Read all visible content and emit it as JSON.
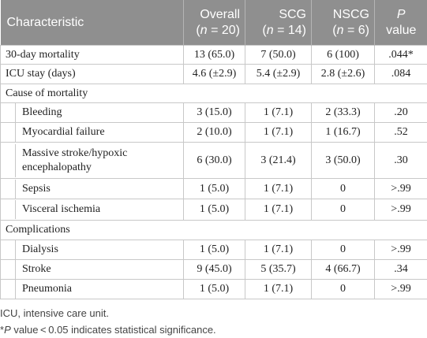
{
  "table": {
    "header": [
      [
        [
          "Characteristic"
        ]
      ],
      [
        [
          "Overall"
        ],
        [
          "(",
          {
            "text": "n",
            "italic": true
          },
          " = 20)"
        ]
      ],
      [
        [
          "SCG"
        ],
        [
          "(",
          {
            "text": "n",
            "italic": true
          },
          " = 14)"
        ]
      ],
      [
        [
          "NSCG"
        ],
        [
          "(",
          {
            "text": "n",
            "italic": true
          },
          " = 6)"
        ]
      ],
      [
        [
          {
            "text": "P",
            "italic": true
          }
        ],
        [
          "value"
        ]
      ]
    ],
    "rows": [
      {
        "indent": false,
        "cells": [
          "30-day mortality",
          "13 (65.0)",
          "7 (50.0)",
          "6 (100)",
          ".044*"
        ]
      },
      {
        "indent": false,
        "cells": [
          "ICU stay (days)",
          "4.6 (±2.9)",
          "5.4 (±2.9)",
          "2.8 (±2.6)",
          ".084"
        ]
      },
      {
        "section": true,
        "cells": [
          "Cause of mortality"
        ]
      },
      {
        "indent": true,
        "cells": [
          "Bleeding",
          "3 (15.0)",
          "1 (7.1)",
          "2 (33.3)",
          ".20"
        ]
      },
      {
        "indent": true,
        "cells": [
          "Myocardial failure",
          "2 (10.0)",
          "1 (7.1)",
          "1 (16.7)",
          ".52"
        ]
      },
      {
        "indent": true,
        "cells": [
          "Massive stroke/hypoxic encephalopathy",
          "6 (30.0)",
          "3 (21.4)",
          "3 (50.0)",
          ".30"
        ]
      },
      {
        "indent": true,
        "cells": [
          "Sepsis",
          "1 (5.0)",
          "1 (7.1)",
          "0",
          ">.99"
        ]
      },
      {
        "indent": true,
        "cells": [
          "Visceral ischemia",
          "1 (5.0)",
          "1 (7.1)",
          "0",
          ">.99"
        ]
      },
      {
        "section": true,
        "cells": [
          "Complications"
        ]
      },
      {
        "indent": true,
        "cells": [
          "Dialysis",
          "1 (5.0)",
          "1 (7.1)",
          "0",
          ">.99"
        ]
      },
      {
        "indent": true,
        "cells": [
          "Stroke",
          "9 (45.0)",
          "5 (35.7)",
          "4 (66.7)",
          ".34"
        ]
      },
      {
        "indent": true,
        "cells": [
          "Pneumonia",
          "1 (5.0)",
          "1 (7.1)",
          "0",
          ">.99"
        ]
      }
    ],
    "footnotes": [
      [
        "ICU, intensive care unit."
      ],
      [
        "*",
        {
          "text": "P",
          "italic": true
        },
        " value < 0.05 indicates statistical significance."
      ]
    ]
  }
}
